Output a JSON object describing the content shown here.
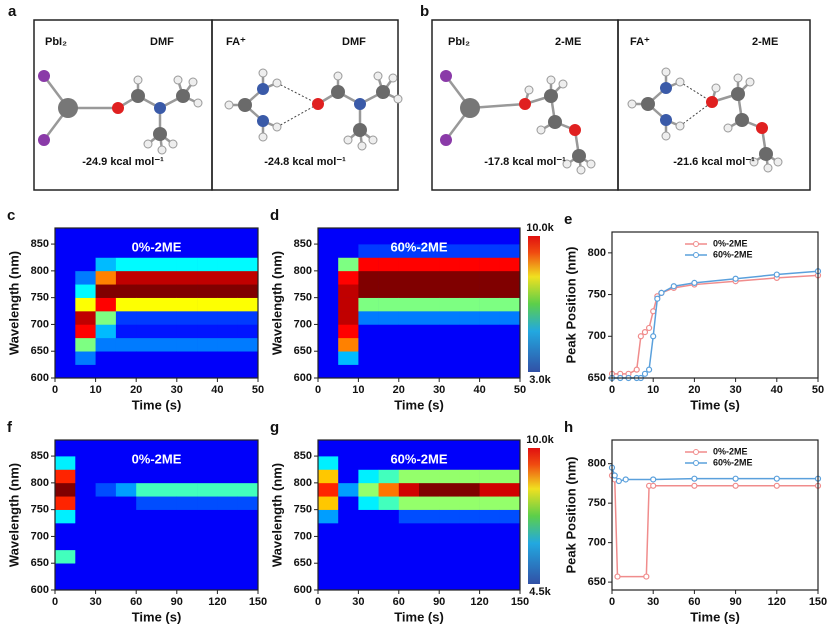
{
  "molecule_panels": [
    {
      "label": "a",
      "boxes": [
        {
          "left": "PbI₂",
          "right": "DMF",
          "energy": "-24.9 kcal mol⁻¹"
        },
        {
          "left": "FA⁺",
          "right": "DMF",
          "energy": "-24.8 kcal mol⁻¹"
        }
      ]
    },
    {
      "label": "b",
      "boxes": [
        {
          "left": "PbI₂",
          "right": "2-ME",
          "energy": "-17.8 kcal mol⁻¹"
        },
        {
          "left": "FA⁺",
          "right": "2-ME",
          "energy": "-21.6 kcal mol⁻¹"
        }
      ]
    }
  ],
  "chart_data": [
    {
      "panel": "c",
      "type": "heatmap",
      "annotation": "0%-2ME",
      "xlabel": "Time (s)",
      "ylabel": "Wavelength (nm)",
      "xlim": [
        0,
        50
      ],
      "xticks": [
        0,
        10,
        20,
        30,
        40,
        50
      ],
      "ylim": [
        600,
        880
      ],
      "yticks": [
        600,
        650,
        700,
        750,
        800,
        850
      ],
      "xbins": [
        0,
        5,
        10,
        15,
        20,
        25,
        30,
        35,
        40,
        45,
        50
      ],
      "ybins": [
        600,
        625,
        650,
        675,
        700,
        725,
        750,
        775,
        800,
        825,
        850,
        875
      ],
      "z": [
        [
          3000,
          3000,
          3000,
          3000,
          3000,
          3000,
          3000,
          3000,
          3000,
          3000,
          3000
        ],
        [
          3000,
          4000,
          6000,
          9000,
          9500,
          7000,
          5000,
          4000,
          3000,
          3000,
          3000
        ],
        [
          3000,
          3000,
          4000,
          4500,
          6000,
          9000,
          10000,
          8000,
          4500,
          3000,
          3000
        ],
        [
          3000,
          3000,
          4000,
          3200,
          3500,
          7000,
          10000,
          9500,
          5000,
          3000,
          3000
        ],
        [
          3000,
          3000,
          4000,
          3200,
          3500,
          7000,
          10000,
          9500,
          5000,
          3000,
          3000
        ],
        [
          3000,
          3000,
          4000,
          3200,
          3500,
          7000,
          10000,
          9500,
          5000,
          3000,
          3000
        ],
        [
          3000,
          3000,
          4000,
          3200,
          3500,
          7000,
          10000,
          9500,
          5000,
          3000,
          3000
        ],
        [
          3000,
          3000,
          4000,
          3200,
          3500,
          7000,
          10000,
          9500,
          5000,
          3000,
          3000
        ],
        [
          3000,
          3000,
          4000,
          3200,
          3500,
          7000,
          10000,
          9500,
          5000,
          3000,
          3000
        ],
        [
          3000,
          3000,
          4000,
          3200,
          3500,
          7000,
          10000,
          9500,
          5000,
          3000,
          3000
        ]
      ]
    },
    {
      "panel": "d",
      "type": "heatmap",
      "annotation": "60%-2ME",
      "xlabel": "Time (s)",
      "ylabel": "Wavelength (nm)",
      "xlim": [
        0,
        50
      ],
      "xticks": [
        0,
        10,
        20,
        30,
        40,
        50
      ],
      "ylim": [
        600,
        880
      ],
      "yticks": [
        600,
        650,
        700,
        750,
        800,
        850
      ],
      "zlim": [
        3000,
        10000
      ],
      "zticks": [
        {
          "value": 10000,
          "label": "10.0k"
        },
        {
          "value": 3000,
          "label": "3.0k"
        }
      ],
      "xbins": [
        0,
        5,
        10,
        15,
        20,
        25,
        30,
        35,
        40,
        45,
        50
      ],
      "ybins": [
        600,
        625,
        650,
        675,
        700,
        725,
        750,
        775,
        800,
        825,
        850,
        875
      ],
      "z": [
        [
          3000,
          3000,
          3000,
          3000,
          3000,
          3000,
          3000,
          3000,
          3000,
          3000,
          3000
        ],
        [
          3000,
          4500,
          8000,
          9000,
          9500,
          9500,
          9500,
          9000,
          6000,
          3000,
          3000
        ],
        [
          3000,
          3000,
          3000,
          3000,
          4000,
          6000,
          10000,
          10000,
          9000,
          3500,
          3000
        ],
        [
          3000,
          3000,
          3000,
          3000,
          4000,
          6000,
          10000,
          10000,
          9000,
          3500,
          3000
        ],
        [
          3000,
          3000,
          3000,
          3000,
          4000,
          6000,
          10000,
          10000,
          9000,
          3500,
          3000
        ],
        [
          3000,
          3000,
          3000,
          3000,
          4000,
          6000,
          10000,
          10000,
          9000,
          3500,
          3000
        ],
        [
          3000,
          3000,
          3000,
          3000,
          4000,
          6000,
          10000,
          10000,
          9000,
          3500,
          3000
        ],
        [
          3000,
          3000,
          3000,
          3000,
          4000,
          6000,
          10000,
          10000,
          9000,
          3500,
          3000
        ],
        [
          3000,
          3000,
          3000,
          3000,
          4000,
          6000,
          10000,
          10000,
          9000,
          3500,
          3000
        ],
        [
          3000,
          3000,
          3000,
          3000,
          4000,
          6000,
          10000,
          10000,
          9000,
          3500,
          3000
        ]
      ]
    },
    {
      "panel": "e",
      "type": "line",
      "xlabel": "Time (s)",
      "ylabel": "Peak Position (nm)",
      "xlim": [
        0,
        50
      ],
      "xticks": [
        0,
        10,
        20,
        30,
        40,
        50
      ],
      "ylim": [
        650,
        825
      ],
      "yticks": [
        650,
        700,
        750,
        800
      ],
      "legend": "upper center",
      "series": [
        {
          "name": "0%-2ME",
          "color": "#f08c8c",
          "x": [
            0,
            2,
            4,
            6,
            7,
            8,
            9,
            10,
            11,
            12,
            15,
            20,
            30,
            40,
            50
          ],
          "values": [
            655,
            655,
            655,
            660,
            700,
            705,
            710,
            730,
            748,
            752,
            758,
            762,
            766,
            770,
            773
          ]
        },
        {
          "name": "60%-2ME",
          "color": "#5aa0dc",
          "x": [
            0,
            2,
            4,
            6,
            7,
            8,
            9,
            10,
            11,
            12,
            15,
            20,
            30,
            40,
            50
          ],
          "values": [
            650,
            650,
            650,
            650,
            650,
            655,
            660,
            700,
            745,
            752,
            760,
            764,
            769,
            774,
            778
          ]
        }
      ]
    },
    {
      "panel": "f",
      "type": "heatmap",
      "annotation": "0%-2ME",
      "xlabel": "Time (s)",
      "ylabel": "Wavelength (nm)",
      "xlim": [
        0,
        150
      ],
      "xticks": [
        0,
        30,
        60,
        90,
        120,
        150
      ],
      "ylim": [
        600,
        880
      ],
      "yticks": [
        600,
        650,
        700,
        750,
        800,
        850
      ],
      "xbins": [
        0,
        15,
        30,
        45,
        60,
        75,
        90,
        105,
        120,
        135,
        150
      ],
      "ybins": [
        600,
        625,
        650,
        675,
        700,
        725,
        750,
        775,
        800,
        825,
        850,
        875
      ],
      "z": [
        [
          4500,
          4500,
          6500,
          4500,
          4500,
          6000,
          9000,
          10000,
          9000,
          6000,
          4500
        ],
        [
          4500,
          4500,
          4500,
          4500,
          4500,
          4500,
          4500,
          4500,
          4500,
          4500,
          4500
        ],
        [
          4500,
          4500,
          4500,
          4500,
          4500,
          4500,
          4500,
          5000,
          4500,
          4500,
          4500
        ],
        [
          4500,
          4500,
          4500,
          4500,
          4500,
          4500,
          4500,
          5500,
          4500,
          4500,
          4500
        ],
        [
          4500,
          4500,
          4500,
          4500,
          4500,
          4500,
          5000,
          6500,
          4500,
          4500,
          4500
        ],
        [
          4500,
          4500,
          4500,
          4500,
          4500,
          4500,
          5000,
          6500,
          4500,
          4500,
          4500
        ],
        [
          4500,
          4500,
          4500,
          4500,
          4500,
          4500,
          5000,
          6500,
          4500,
          4500,
          4500
        ],
        [
          4500,
          4500,
          4500,
          4500,
          4500,
          4500,
          5000,
          6500,
          4500,
          4500,
          4500
        ],
        [
          4500,
          4500,
          4500,
          4500,
          4500,
          4500,
          5000,
          6500,
          4500,
          4500,
          4500
        ],
        [
          4500,
          4500,
          4500,
          4500,
          4500,
          4500,
          5000,
          6500,
          4500,
          4500,
          4500
        ]
      ]
    },
    {
      "panel": "g",
      "type": "heatmap",
      "annotation": "60%-2ME",
      "xlabel": "Time (s)",
      "ylabel": "Wavelength (nm)",
      "xlim": [
        0,
        150
      ],
      "xticks": [
        0,
        30,
        60,
        90,
        120,
        150
      ],
      "ylim": [
        600,
        880
      ],
      "yticks": [
        600,
        650,
        700,
        750,
        800,
        850
      ],
      "zlim": [
        4500,
        10000
      ],
      "zticks": [
        {
          "value": 10000,
          "label": "10.0k"
        },
        {
          "value": 4500,
          "label": "4.5k"
        }
      ],
      "xbins": [
        0,
        15,
        30,
        45,
        60,
        75,
        90,
        105,
        120,
        135,
        150
      ],
      "ybins": [
        600,
        625,
        650,
        675,
        700,
        725,
        750,
        775,
        800,
        825,
        850,
        875
      ],
      "z": [
        [
          4500,
          4500,
          4500,
          4500,
          4500,
          5500,
          8000,
          9000,
          8000,
          6000,
          4500
        ],
        [
          4500,
          4500,
          4500,
          4500,
          4500,
          4500,
          4500,
          5500,
          4500,
          4500,
          4500
        ],
        [
          4500,
          4500,
          4500,
          4500,
          4500,
          4500,
          6000,
          7000,
          6000,
          4500,
          4500
        ],
        [
          4500,
          4500,
          4500,
          4500,
          4500,
          4500,
          6500,
          8500,
          6500,
          4500,
          4500
        ],
        [
          4500,
          4500,
          4500,
          4500,
          4500,
          5000,
          7000,
          9500,
          7000,
          4500,
          4500
        ],
        [
          4500,
          4500,
          4500,
          4500,
          4500,
          5000,
          7000,
          10000,
          7000,
          4500,
          4500
        ],
        [
          4500,
          4500,
          4500,
          4500,
          4500,
          5000,
          7000,
          10000,
          7000,
          4500,
          4500
        ],
        [
          4500,
          4500,
          4500,
          4500,
          4500,
          5000,
          7000,
          10000,
          7000,
          4500,
          4500
        ],
        [
          4500,
          4500,
          4500,
          4500,
          4500,
          5000,
          7000,
          9500,
          7000,
          4500,
          4500
        ],
        [
          4500,
          4500,
          4500,
          4500,
          4500,
          5000,
          7000,
          9500,
          7000,
          4500,
          4500
        ]
      ]
    },
    {
      "panel": "h",
      "type": "line",
      "xlabel": "Time (s)",
      "ylabel": "Peak Position (nm)",
      "xlim": [
        0,
        150
      ],
      "xticks": [
        0,
        30,
        60,
        90,
        120,
        150
      ],
      "ylim": [
        640,
        830
      ],
      "yticks": [
        650,
        700,
        750,
        800
      ],
      "legend": "upper center",
      "series": [
        {
          "name": "0%-2ME",
          "color": "#f08c8c",
          "x": [
            0,
            2,
            4,
            25,
            27,
            30,
            60,
            90,
            120,
            150
          ],
          "values": [
            785,
            780,
            657,
            657,
            772,
            772,
            772,
            772,
            772,
            772
          ]
        },
        {
          "name": "60%-2ME",
          "color": "#5aa0dc",
          "x": [
            0,
            2,
            5,
            10,
            30,
            60,
            90,
            120,
            150
          ],
          "values": [
            795,
            785,
            778,
            780,
            780,
            781,
            781,
            781,
            781
          ]
        }
      ]
    }
  ]
}
